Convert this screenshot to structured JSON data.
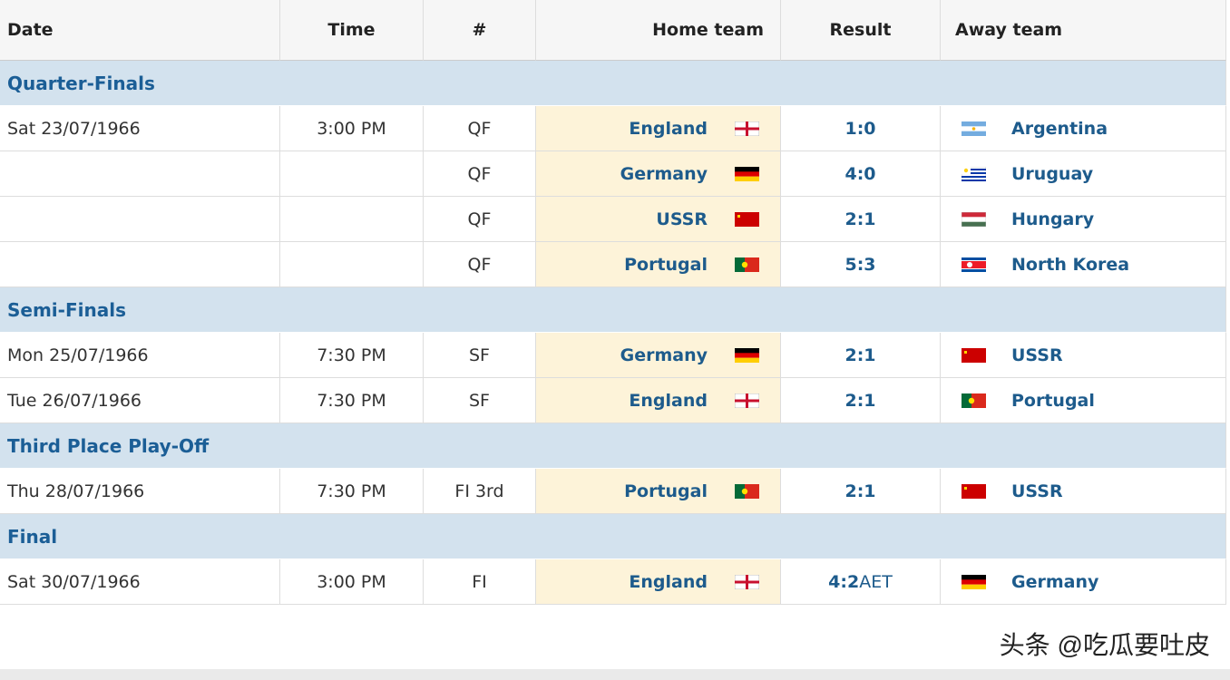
{
  "header": {
    "columns": [
      "Date",
      "Time",
      "#",
      "Home team",
      "Result",
      "Away team"
    ]
  },
  "sections": [
    {
      "title": "Quarter-Finals",
      "matches": [
        {
          "date": "Sat 23/07/1966",
          "time": "3:00 PM",
          "num": "QF",
          "home": "England",
          "result": "1:0",
          "away": "Argentina"
        },
        {
          "date": null,
          "time": null,
          "num": "QF",
          "home": "Germany",
          "result": "4:0",
          "away": "Uruguay"
        },
        {
          "date": null,
          "time": null,
          "num": "QF",
          "home": "USSR",
          "result": "2:1",
          "away": "Hungary"
        },
        {
          "date": null,
          "time": null,
          "num": "QF",
          "home": "Portugal",
          "result": "5:3",
          "away": "North Korea"
        }
      ]
    },
    {
      "title": "Semi-Finals",
      "matches": [
        {
          "date": "Mon 25/07/1966",
          "time": "7:30 PM",
          "num": "SF",
          "home": "Germany",
          "result": "2:1",
          "away": "USSR"
        },
        {
          "date": "Tue 26/07/1966",
          "time": "7:30 PM",
          "num": "SF",
          "home": "England",
          "result": "2:1",
          "away": "Portugal"
        }
      ]
    },
    {
      "title": "Third Place Play-Off",
      "matches": [
        {
          "date": "Thu 28/07/1966",
          "time": "7:30 PM",
          "num": "FI 3rd",
          "home": "Portugal",
          "result": "2:1",
          "away": "USSR"
        }
      ]
    },
    {
      "title": "Final",
      "matches": [
        {
          "date": "Sat 30/07/1966",
          "time": "3:00 PM",
          "num": "FI",
          "home": "England",
          "result": "4:2",
          "result_note": "AET",
          "away": "Germany"
        }
      ]
    }
  ],
  "watermark": "头条 @吃瓜要吐皮"
}
